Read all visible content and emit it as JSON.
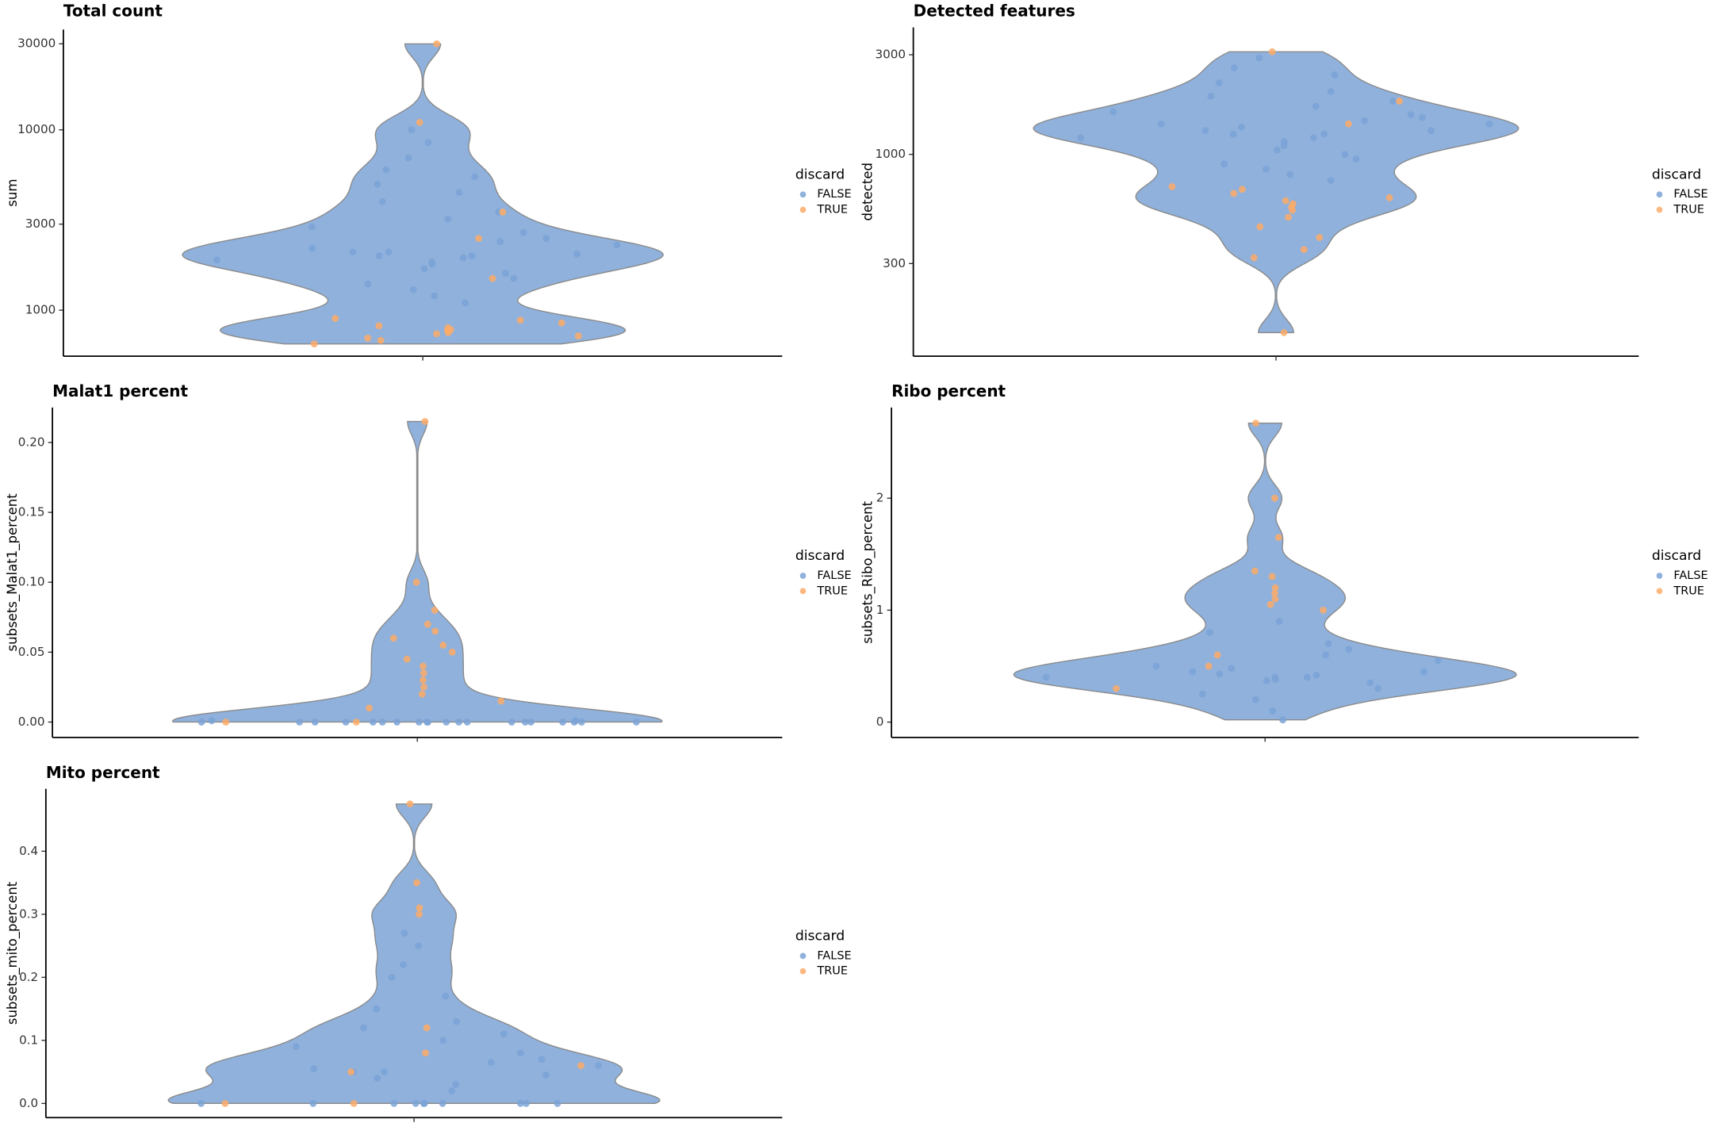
{
  "chart_data": [
    {
      "type": "violin",
      "title": "Total count",
      "y_label": "sum",
      "yscale": "log",
      "ylim": [
        556,
        36000
      ],
      "yticks": [
        1000,
        3000,
        10000,
        30000
      ],
      "legend_title": "discard",
      "series": [
        {
          "name": "FALSE",
          "color": "#7ba3d6",
          "values": [
            1100,
            1200,
            1300,
            1400,
            1500,
            1600,
            1700,
            1800,
            1850,
            1900,
            1950,
            2000,
            2000,
            2050,
            2100,
            2100,
            2200,
            2300,
            2400,
            2500,
            2700,
            2900,
            3200,
            3500,
            4000,
            4500,
            5000,
            5500,
            6000,
            7000,
            8500,
            10000
          ]
        },
        {
          "name": "TRUE",
          "color": "#fdac69",
          "values": [
            650,
            680,
            700,
            720,
            740,
            750,
            770,
            780,
            800,
            820,
            850,
            880,
            900,
            1500,
            2500,
            3500,
            11000,
            30000
          ]
        }
      ]
    },
    {
      "type": "violin",
      "title": "Detected features",
      "y_label": "detected",
      "yscale": "log",
      "ylim": [
        108,
        4060
      ],
      "yticks": [
        300,
        1000,
        3000
      ],
      "legend_title": "discard",
      "series": [
        {
          "name": "FALSE",
          "color": "#7ba3d6",
          "values": [
            750,
            800,
            850,
            900,
            950,
            1000,
            1050,
            1100,
            1150,
            1200,
            1200,
            1250,
            1250,
            1300,
            1300,
            1350,
            1400,
            1400,
            1450,
            1500,
            1550,
            1600,
            1700,
            1800,
            1900,
            2000,
            2200,
            2400,
            2600,
            2900
          ]
        },
        {
          "name": "TRUE",
          "color": "#fdac69",
          "values": [
            700,
            680,
            650,
            620,
            600,
            580,
            560,
            540,
            500,
            450,
            400,
            350,
            320,
            140,
            1400,
            1800,
            3100
          ]
        }
      ]
    },
    {
      "type": "violin",
      "title": "Malat1 percent",
      "y_label": "subsets_Malat1_percent",
      "yscale": "linear",
      "ylim": [
        -0.011,
        0.225
      ],
      "yticks": [
        {
          "value": 0,
          "label": "0.00"
        },
        {
          "value": 0.05,
          "label": "0.05"
        },
        {
          "value": 0.1,
          "label": "0.10"
        },
        {
          "value": 0.15,
          "label": "0.15"
        },
        {
          "value": 0.2,
          "label": "0.20"
        }
      ],
      "legend_title": "discard",
      "series": [
        {
          "name": "FALSE",
          "color": "#7ba3d6",
          "values": [
            0,
            0,
            0,
            0,
            0,
            0,
            0,
            0,
            0,
            0,
            0,
            0,
            0,
            0,
            0,
            0,
            0,
            0,
            0,
            0,
            0.001,
            0.001
          ]
        },
        {
          "name": "TRUE",
          "color": "#fdac69",
          "values": [
            0,
            0,
            0.01,
            0.015,
            0.02,
            0.025,
            0.03,
            0.035,
            0.04,
            0.045,
            0.05,
            0.055,
            0.06,
            0.065,
            0.07,
            0.08,
            0.1,
            0.215
          ]
        }
      ]
    },
    {
      "type": "violin",
      "title": "Ribo percent",
      "y_label": "subsets_Ribo_percent",
      "yscale": "linear",
      "ylim": [
        -0.137,
        2.81
      ],
      "yticks": [
        0,
        1,
        2
      ],
      "legend_title": "discard",
      "series": [
        {
          "name": "FALSE",
          "color": "#7ba3d6",
          "values": [
            0.02,
            0.1,
            0.2,
            0.25,
            0.3,
            0.35,
            0.37,
            0.38,
            0.4,
            0.4,
            0.4,
            0.42,
            0.43,
            0.45,
            0.45,
            0.48,
            0.5,
            0.55,
            0.6,
            0.65,
            0.7,
            0.8,
            0.9
          ]
        },
        {
          "name": "TRUE",
          "color": "#fdac69",
          "values": [
            0.3,
            0.5,
            0.6,
            1.0,
            1.05,
            1.1,
            1.15,
            1.2,
            1.3,
            1.35,
            1.65,
            2.0,
            2.67
          ]
        }
      ]
    },
    {
      "type": "violin",
      "title": "Mito percent",
      "y_label": "subsets_mito_percent",
      "yscale": "linear",
      "ylim": [
        -0.0225,
        0.499
      ],
      "yticks": [
        {
          "value": 0,
          "label": "0.0"
        },
        {
          "value": 0.1,
          "label": "0.1"
        },
        {
          "value": 0.2,
          "label": "0.2"
        },
        {
          "value": 0.3,
          "label": "0.3"
        },
        {
          "value": 0.4,
          "label": "0.4"
        }
      ],
      "legend_title": "discard",
      "series": [
        {
          "name": "FALSE",
          "color": "#7ba3d6",
          "values": [
            0,
            0,
            0,
            0,
            0,
            0,
            0,
            0,
            0,
            0,
            0.02,
            0.03,
            0.04,
            0.045,
            0.05,
            0.05,
            0.055,
            0.06,
            0.065,
            0.07,
            0.08,
            0.09,
            0.1,
            0.11,
            0.12,
            0.13,
            0.15,
            0.17,
            0.2,
            0.22,
            0.25,
            0.27
          ]
        },
        {
          "name": "TRUE",
          "color": "#fdac69",
          "values": [
            0,
            0,
            0.05,
            0.06,
            0.08,
            0.12,
            0.3,
            0.31,
            0.35,
            0.475
          ]
        }
      ]
    }
  ]
}
